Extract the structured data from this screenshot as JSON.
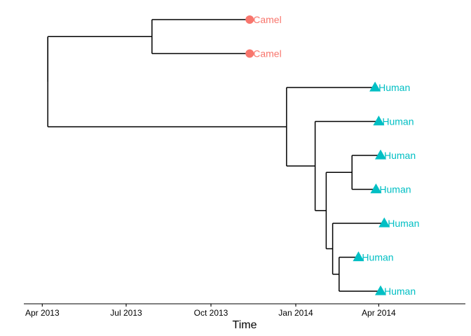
{
  "figure": {
    "xlabel": "Time"
  },
  "colors": {
    "camel": "#F8766D",
    "human": "#00BFC4",
    "branch": "#000000"
  },
  "chart_data": {
    "type": "phylogenetic-tree",
    "x_axis": {
      "label": "Time",
      "ticks": [
        "Apr 2013",
        "Jul 2013",
        "Oct 2013",
        "Jan 2014",
        "Apr 2014"
      ],
      "tick_values": [
        "2013-04-01",
        "2013-07-01",
        "2013-10-01",
        "2014-01-01",
        "2014-04-01"
      ],
      "range": [
        "2013-03-12",
        "2014-07-04"
      ]
    },
    "tips": [
      {
        "label": "Camel",
        "host": "camel",
        "shape": "circle",
        "date": "2013-11-12"
      },
      {
        "label": "Camel",
        "host": "camel",
        "shape": "circle",
        "date": "2013-11-12"
      },
      {
        "label": "Human",
        "host": "human",
        "shape": "triangle",
        "date": "2014-03-28"
      },
      {
        "label": "Human",
        "host": "human",
        "shape": "triangle",
        "date": "2014-04-01"
      },
      {
        "label": "Human",
        "host": "human",
        "shape": "triangle",
        "date": "2014-04-03"
      },
      {
        "label": "Human",
        "host": "human",
        "shape": "triangle",
        "date": "2014-03-29"
      },
      {
        "label": "Human",
        "host": "human",
        "shape": "triangle",
        "date": "2014-04-07"
      },
      {
        "label": "Human",
        "host": "human",
        "shape": "triangle",
        "date": "2014-03-10"
      },
      {
        "label": "Human",
        "host": "human",
        "shape": "triangle",
        "date": "2014-04-03"
      }
    ],
    "nodes": [
      {
        "id": "root",
        "date": "2013-04-07",
        "children": [
          "camelClade",
          "humanClade"
        ]
      },
      {
        "id": "camelClade",
        "date": "2013-07-29",
        "children": [
          "tip0",
          "tip1"
        ]
      },
      {
        "id": "humanClade",
        "date": "2013-12-22",
        "children": [
          "tip2",
          "h2"
        ]
      },
      {
        "id": "h2",
        "date": "2014-01-22",
        "children": [
          "tip3",
          "h3"
        ]
      },
      {
        "id": "h3",
        "date": "2014-02-03",
        "children": [
          "h4",
          "h5"
        ]
      },
      {
        "id": "h4",
        "date": "2014-03-03",
        "children": [
          "tip4",
          "tip5"
        ]
      },
      {
        "id": "h5",
        "date": "2014-02-10",
        "children": [
          "tip6",
          "h6"
        ]
      },
      {
        "id": "h6",
        "date": "2014-02-17",
        "children": [
          "tip7",
          "tip8"
        ]
      }
    ]
  }
}
